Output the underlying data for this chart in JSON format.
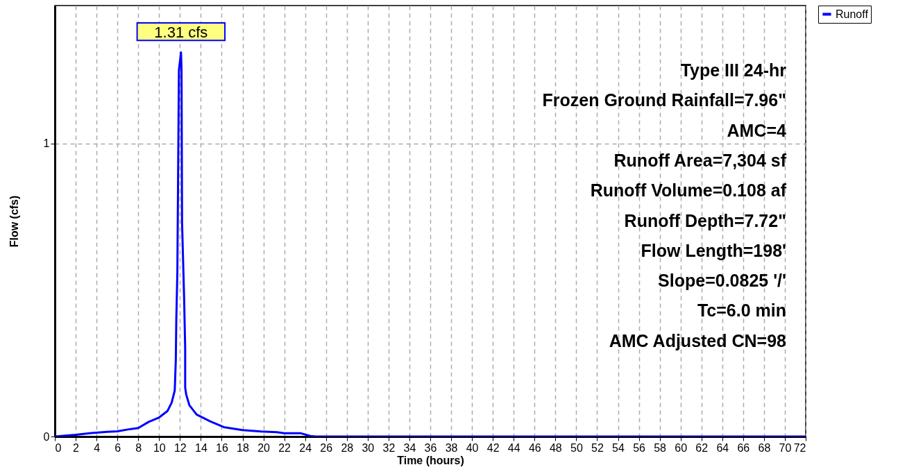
{
  "chart_data": {
    "type": "line",
    "xlabel": "Time  (hours)",
    "ylabel": "Flow  (cfs)",
    "x": [
      0,
      1,
      2,
      3.5,
      5,
      6,
      7,
      8,
      9,
      10,
      10.8,
      11.2,
      11.5,
      11.6,
      11.65,
      11.75,
      11.9,
      12.1,
      12.15,
      12.2,
      12.4,
      12.5,
      12.5,
      12.6,
      12.9,
      13.6,
      14.9,
      16.2,
      18,
      19.8,
      21.3,
      22,
      23.6,
      24.5,
      25,
      72
    ],
    "series": [
      {
        "name": "Runoff",
        "color": "#0000ff",
        "values": [
          0,
          0.003,
          0.006,
          0.012,
          0.016,
          0.018,
          0.024,
          0.029,
          0.05,
          0.065,
          0.087,
          0.115,
          0.157,
          0.26,
          0.4,
          0.56,
          1.25,
          1.31,
          1.25,
          0.73,
          0.47,
          0.3,
          0.167,
          0.143,
          0.107,
          0.075,
          0.052,
          0.032,
          0.022,
          0.017,
          0.015,
          0.011,
          0.011,
          0.002,
          0,
          0
        ]
      }
    ],
    "xlim": [
      0,
      72
    ],
    "xticks": [
      0,
      2,
      4,
      6,
      8,
      10,
      12,
      14,
      16,
      18,
      20,
      22,
      24,
      26,
      28,
      30,
      32,
      34,
      36,
      38,
      40,
      42,
      44,
      46,
      48,
      50,
      52,
      54,
      56,
      58,
      60,
      62,
      64,
      66,
      68,
      70,
      72
    ],
    "ylim": [
      0,
      1.47
    ],
    "yticks": [
      0,
      1
    ],
    "grid": true,
    "line_style": "solid",
    "legend": "top right",
    "annotations": [
      {
        "text": "1.31 cfs",
        "x": 12.1,
        "y": 1.31
      },
      "Type III 24-hr",
      "Frozen Ground Rainfall=7.96\"",
      "AMC=4",
      "Runoff Area=7,304 sf",
      "Runoff Volume=0.108 af",
      "Runoff Depth=7.72\"",
      "Flow Length=198'",
      "Slope=0.0825 '/'",
      "Tc=6.0 min",
      "AMC Adjusted CN=98"
    ]
  }
}
